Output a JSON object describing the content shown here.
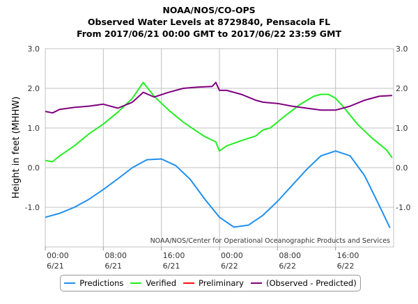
{
  "titles": {
    "line1": "NOAA/NOS/CO-OPS",
    "line2": "Observed Water Levels at 8729840, Pensacola FL",
    "line3": "From 2017/06/21 00:00 GMT to 2017/06/22 23:59 GMT"
  },
  "credit": "NOAA/NOS/Center for Operational Oceanographic Products and Services",
  "colors": {
    "predictions": "#1f8ff0",
    "verified": "#22ee22",
    "preliminary": "#ff1111",
    "observed_minus_predicted": "#800080",
    "grid": "#c0c0c0"
  },
  "chart_data": {
    "type": "line",
    "ylabel": "Height in feet (MHHW)",
    "xlabel": "",
    "ylim": [
      -2.0,
      3.0
    ],
    "xlim_hours": [
      0,
      48
    ],
    "y_ticks": [
      "3.0",
      "2.0",
      "1.0",
      "0.0",
      "-1.0"
    ],
    "x_ticks": [
      {
        "hour": 0,
        "time": "00:00",
        "date": "6/21"
      },
      {
        "hour": 8,
        "time": "08:00",
        "date": "6/21"
      },
      {
        "hour": 16,
        "time": "16:00",
        "date": "6/21"
      },
      {
        "hour": 24,
        "time": "00:00",
        "date": "6/22"
      },
      {
        "hour": 32,
        "time": "08:00",
        "date": "6/22"
      },
      {
        "hour": 40,
        "time": "16:00",
        "date": "6/22"
      }
    ],
    "grid": true,
    "legend_position": "bottom",
    "series": [
      {
        "name": "Predictions",
        "key": "predictions",
        "x": [
          0,
          2,
          4,
          6,
          8,
          10,
          12,
          14,
          16,
          18,
          20,
          22,
          24,
          26,
          28,
          30,
          32,
          34,
          36,
          38,
          40,
          42,
          44,
          46,
          47.5
        ],
        "y": [
          -1.25,
          -1.15,
          -1.0,
          -0.8,
          -0.55,
          -0.28,
          0.0,
          0.2,
          0.22,
          0.05,
          -0.3,
          -0.8,
          -1.25,
          -1.5,
          -1.45,
          -1.2,
          -0.85,
          -0.45,
          -0.05,
          0.3,
          0.42,
          0.3,
          -0.2,
          -0.95,
          -1.52
        ]
      },
      {
        "name": "Verified",
        "key": "verified",
        "x": [
          0,
          1,
          2,
          4,
          6,
          8,
          10,
          12,
          13.5,
          15,
          17,
          19,
          21,
          22,
          23.5,
          24,
          25,
          27,
          29,
          30,
          31,
          33,
          35,
          37,
          38,
          39,
          40,
          41,
          43,
          45,
          47,
          47.8
        ],
        "y": [
          0.18,
          0.15,
          0.3,
          0.55,
          0.85,
          1.1,
          1.4,
          1.75,
          2.15,
          1.8,
          1.45,
          1.15,
          0.9,
          0.78,
          0.65,
          0.42,
          0.55,
          0.68,
          0.8,
          0.95,
          1.0,
          1.3,
          1.58,
          1.8,
          1.85,
          1.85,
          1.75,
          1.55,
          1.1,
          0.75,
          0.45,
          0.25
        ]
      },
      {
        "name": "Preliminary",
        "key": "preliminary",
        "x": [],
        "y": []
      },
      {
        "name": "(Observed - Predicted)",
        "key": "observed_minus_predicted",
        "x": [
          0,
          1,
          2,
          4,
          6,
          8,
          10,
          12,
          13.5,
          15,
          17,
          19,
          21,
          23,
          23.5,
          24,
          25,
          27,
          29,
          30,
          32,
          34,
          36,
          38,
          40,
          42,
          44,
          46,
          47.8
        ],
        "y": [
          1.42,
          1.38,
          1.47,
          1.52,
          1.55,
          1.6,
          1.5,
          1.65,
          1.9,
          1.78,
          1.9,
          2.0,
          2.03,
          2.05,
          2.15,
          1.95,
          1.95,
          1.85,
          1.7,
          1.65,
          1.62,
          1.55,
          1.5,
          1.45,
          1.45,
          1.55,
          1.7,
          1.8,
          1.82
        ]
      }
    ]
  }
}
